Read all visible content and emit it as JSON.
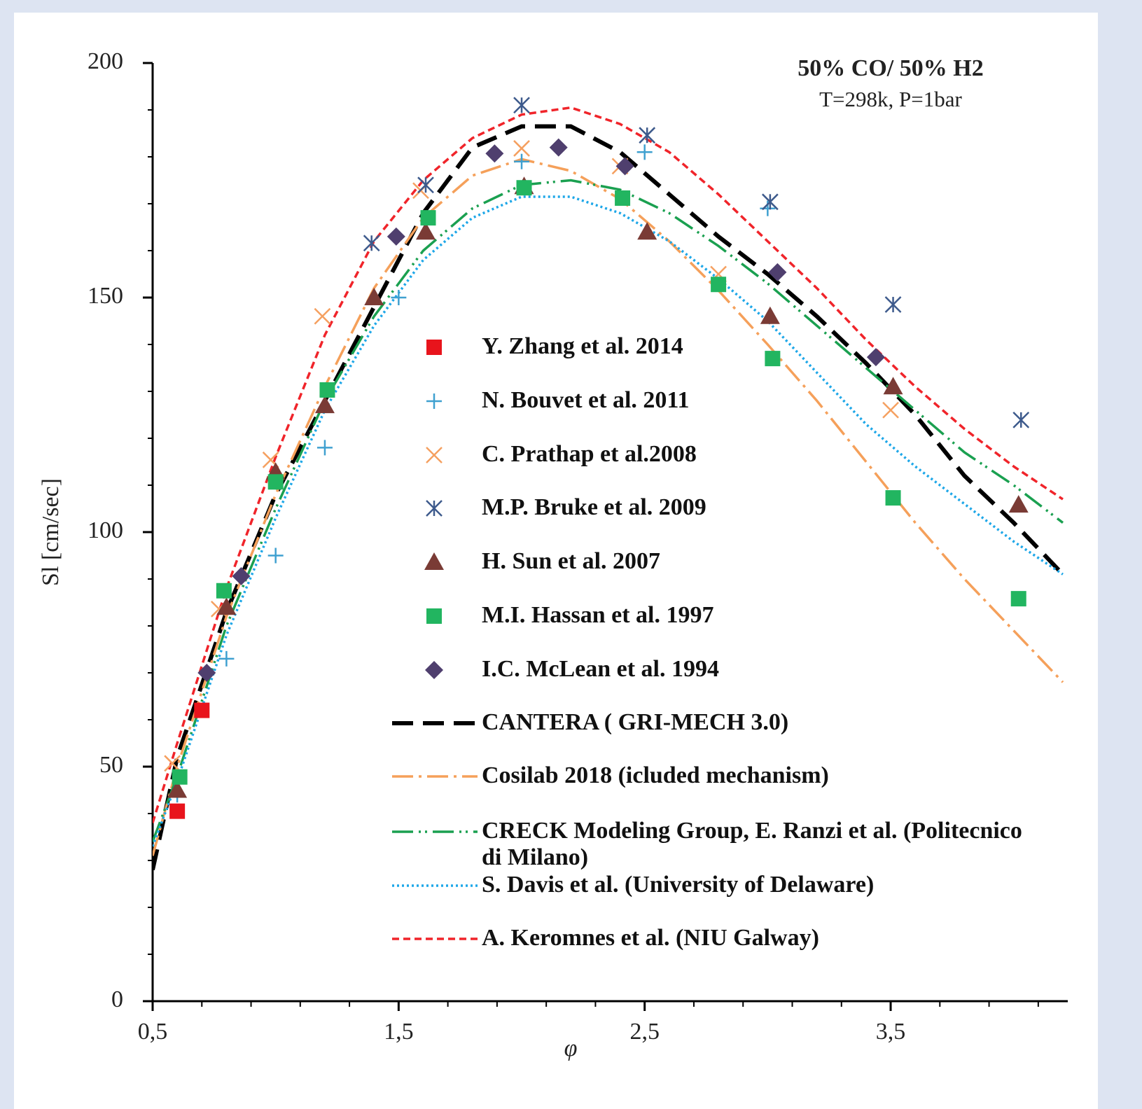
{
  "chart_data": {
    "type": "line",
    "annotations": [
      "50% CO/ 50% H2",
      "T=298k, P=1bar"
    ],
    "xlabel": "φ",
    "ylabel": "Sl [cm/sec]",
    "xlim": [
      0.5,
      4.22
    ],
    "ylim": [
      0,
      200
    ],
    "xticks": [
      {
        "value": 0.5,
        "label": "0,5"
      },
      {
        "value": 1.5,
        "label": "1,5"
      },
      {
        "value": 2.5,
        "label": "2,5"
      },
      {
        "value": 3.5,
        "label": "3,5"
      }
    ],
    "xminorticks": [
      0.7,
      0.9,
      1.1,
      1.3,
      1.7,
      1.9,
      2.1,
      2.3,
      2.7,
      2.9,
      3.1,
      3.3,
      3.7,
      3.9,
      4.1
    ],
    "yticks": [
      0,
      50,
      100,
      150,
      200
    ],
    "yminorticks": [
      10,
      20,
      30,
      40,
      60,
      70,
      80,
      90,
      110,
      120,
      130,
      140,
      160,
      170,
      180,
      190
    ],
    "series": [
      {
        "name": "Y. Zhang et al. 2014",
        "marker": "square",
        "color": "#e8141c",
        "x": [
          0.6,
          0.7
        ],
        "values": [
          40.5,
          62
        ]
      },
      {
        "name": "N. Bouvet et al. 2011",
        "marker": "plus",
        "color": "#3fa0d0",
        "x": [
          0.6,
          0.8,
          1.0,
          1.2,
          1.5,
          2.0,
          2.5,
          3.0
        ],
        "values": [
          44,
          73,
          95,
          118,
          150,
          179,
          181,
          169
        ]
      },
      {
        "name": "C. Prathap et al.2008",
        "marker": "cross",
        "color": "#f5a060",
        "x": [
          0.58,
          0.77,
          0.98,
          1.19,
          1.59,
          2.0,
          2.4,
          2.8,
          3.5
        ],
        "values": [
          50.7,
          83.6,
          115.4,
          146,
          172.8,
          181.8,
          178,
          155,
          126
        ]
      },
      {
        "name": "M.P. Bruke et al. 2009",
        "marker": "star",
        "color": "#3d5a8c",
        "x": [
          1.39,
          1.61,
          2.0,
          2.51,
          3.01,
          3.51,
          4.03
        ],
        "values": [
          161.6,
          174,
          191,
          184.6,
          170.4,
          148.5,
          123.9
        ]
      },
      {
        "name": "H. Sun et al. 2007",
        "marker": "triangle",
        "color": "#7a3b35",
        "x": [
          0.6,
          0.8,
          1.0,
          1.2,
          1.4,
          1.61,
          2.01,
          2.51,
          3.01,
          3.51,
          4.02
        ],
        "values": [
          45,
          84,
          112.8,
          127,
          150,
          164,
          173.7,
          164,
          146,
          131,
          105.8
        ]
      },
      {
        "name": "M.I. Hassan et al. 1997",
        "marker": "square",
        "color": "#22b560",
        "x": [
          0.61,
          0.79,
          1.0,
          1.21,
          1.62,
          2.01,
          2.41,
          2.8,
          3.02,
          3.51,
          4.02
        ],
        "values": [
          47.8,
          87.5,
          110.7,
          130.3,
          167,
          173.4,
          171.2,
          152.8,
          137,
          107.3,
          85.8
        ]
      },
      {
        "name": "I.C. McLean et al. 1994",
        "marker": "diamond",
        "color": "#4f3f6e",
        "x": [
          0.72,
          0.86,
          1.49,
          1.89,
          2.15,
          2.42,
          3.04,
          3.44
        ],
        "values": [
          70,
          90.6,
          163,
          180.7,
          182,
          178,
          155.4,
          137.3
        ]
      },
      {
        "name": "CANTERA ( GRI-MECH 3.0)",
        "line_style": "long-dash",
        "color": "#000000",
        "x": [
          0.5,
          0.6,
          0.8,
          1.0,
          1.2,
          1.4,
          1.6,
          1.8,
          2.0,
          2.2,
          2.4,
          2.6,
          2.8,
          3.0,
          3.2,
          3.4,
          3.6,
          3.8,
          4.0,
          4.2
        ],
        "values": [
          28,
          52,
          83,
          108,
          128,
          148,
          168,
          182,
          186.5,
          186.5,
          181,
          172,
          163,
          155,
          146,
          136,
          125,
          112,
          102,
          91
        ]
      },
      {
        "name": "Cosilab 2018 (icluded mechanism)",
        "line_style": "dash-dot",
        "color": "#f5a05a",
        "x": [
          0.5,
          0.6,
          0.8,
          1.0,
          1.2,
          1.4,
          1.6,
          1.8,
          2.0,
          2.2,
          2.4,
          2.6,
          2.8,
          3.0,
          3.2,
          3.4,
          3.6,
          3.8,
          4.0,
          4.2
        ],
        "values": [
          31,
          50,
          82,
          108,
          131,
          152,
          167,
          176,
          179.5,
          177,
          171,
          162,
          151.5,
          140,
          128,
          115,
          102,
          90,
          79,
          68
        ]
      },
      {
        "name": "CRECK Modeling Group, E. Ranzi et al. (Politecnico di Milano)",
        "line_style": "dash-dot-dot",
        "color": "#1aa050",
        "x": [
          0.5,
          0.6,
          0.8,
          1.0,
          1.2,
          1.4,
          1.6,
          1.8,
          2.0,
          2.2,
          2.4,
          2.6,
          2.8,
          3.0,
          3.2,
          3.4,
          3.6,
          3.8,
          4.0,
          4.2
        ],
        "values": [
          34,
          48,
          80,
          105,
          128,
          146,
          160,
          169,
          174,
          175,
          173,
          168,
          161,
          153,
          144,
          135,
          126,
          117,
          110,
          102
        ]
      },
      {
        "name": "S. Davis et al. (University of Delaware)",
        "line_style": "dotted",
        "color": "#1ea7e8",
        "x": [
          0.5,
          0.6,
          0.8,
          1.0,
          1.2,
          1.4,
          1.6,
          1.8,
          2.0,
          2.2,
          2.4,
          2.6,
          2.8,
          3.0,
          3.2,
          3.4,
          3.6,
          3.8,
          4.0,
          4.2
        ],
        "values": [
          33,
          47,
          78,
          103,
          126,
          144,
          158,
          167,
          171.5,
          171.5,
          168,
          162,
          154,
          145,
          134,
          123,
          114,
          106,
          98,
          91
        ]
      },
      {
        "name": "A. Keromnes et al. (NIU Galway)",
        "line_style": "dashed",
        "color": "#f0242a",
        "x": [
          0.5,
          0.6,
          0.8,
          1.0,
          1.2,
          1.4,
          1.6,
          1.8,
          2.0,
          2.2,
          2.4,
          2.6,
          2.8,
          3.0,
          3.2,
          3.4,
          3.6,
          3.8,
          4.0,
          4.2
        ],
        "values": [
          38,
          55,
          88,
          116,
          142,
          162,
          175,
          184,
          189,
          190.5,
          187,
          181,
          172,
          162,
          152,
          141,
          131,
          122,
          114,
          107
        ]
      }
    ]
  }
}
